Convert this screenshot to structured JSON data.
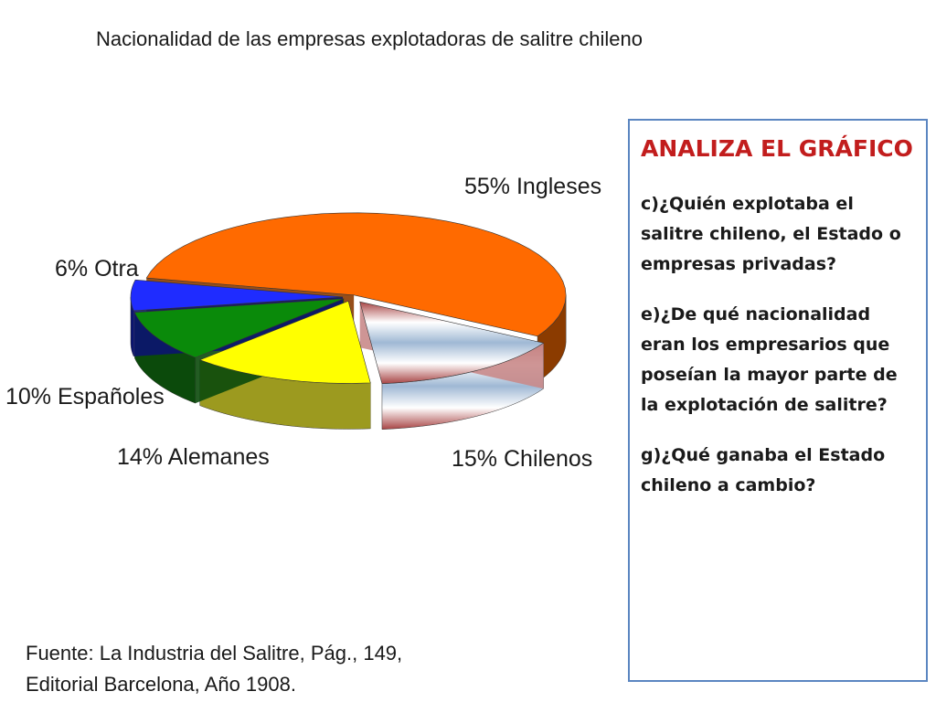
{
  "title": "Nacionalidad de las empresas explotadoras de salitre chileno",
  "chart_data": {
    "type": "pie",
    "slices": [
      {
        "label": "55% Ingleses",
        "name": "Ingleses",
        "value": 55,
        "color": "#ff6a00",
        "side": "#8b3b00"
      },
      {
        "label": "15% Chilenos",
        "name": "Chilenos",
        "value": 15,
        "color": "#d8e4ef",
        "side": "#c98a8a"
      },
      {
        "label": "14% Alemanes",
        "name": "Alemanes",
        "value": 14,
        "color": "#ffff00",
        "side": "#9c9a1f"
      },
      {
        "label": "10% Españoles",
        "name": "Españoles",
        "value": 10,
        "color": "#0a8a0a",
        "side": "#0b4a0b"
      },
      {
        "label": "6% Otra",
        "name": "Otra",
        "value": 6,
        "color": "#1f2cff",
        "side": "#0b1470"
      }
    ]
  },
  "source": {
    "line1": "Fuente: La Industria del Salitre, Pág., 149,",
    "line2": "Editorial Barcelona, Año 1908."
  },
  "panel": {
    "heading": "ANALIZA EL GRÁFICO",
    "questions": [
      "c)¿Quién explotaba el salitre chileno, el Estado o empresas privadas?",
      "e)¿De qué nacionalidad eran los empresarios que poseían la mayor parte de la explotación de salitre?",
      "g)¿Qué ganaba el Estado chileno a cambio?"
    ]
  }
}
